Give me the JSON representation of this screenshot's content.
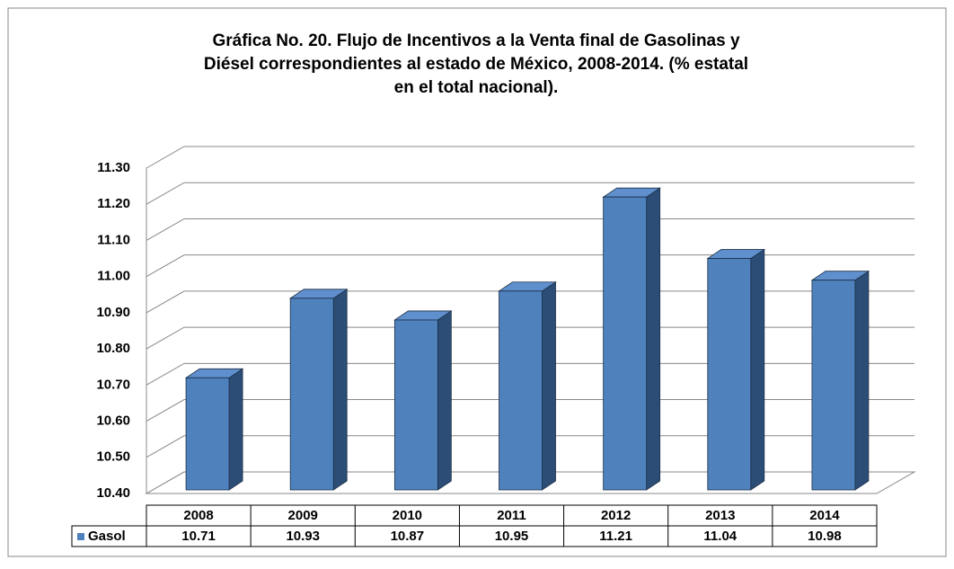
{
  "chart_data": {
    "type": "bar3d",
    "title": [
      "Gráfica No. 20. Flujo de Incentivos a la Venta final de Gasolinas y",
      "Diésel correspondientes al estado de México, 2008-2014. (% estatal",
      "en el total nacional)."
    ],
    "categories": [
      "2008",
      "2009",
      "2010",
      "2011",
      "2012",
      "2013",
      "2014"
    ],
    "series": [
      {
        "name": "Gasol",
        "color": "#4f81bd",
        "values": [
          10.71,
          10.93,
          10.87,
          10.95,
          11.21,
          11.04,
          10.98
        ]
      }
    ],
    "ylim": [
      10.4,
      11.3
    ],
    "yticks": [
      {
        "value": 10.4,
        "label": "10.40"
      },
      {
        "value": 10.5,
        "label": "10.50"
      },
      {
        "value": 10.6,
        "label": "10.60"
      },
      {
        "value": 10.7,
        "label": "10.70"
      },
      {
        "value": 10.8,
        "label": "10.80"
      },
      {
        "value": 10.9,
        "label": "10.90"
      },
      {
        "value": 11.0,
        "label": "11.00"
      },
      {
        "value": 11.1,
        "label": "11.10"
      },
      {
        "value": 11.2,
        "label": "11.20"
      },
      {
        "value": 11.3,
        "label": "11.30"
      }
    ],
    "grid": true,
    "data_table": true
  }
}
